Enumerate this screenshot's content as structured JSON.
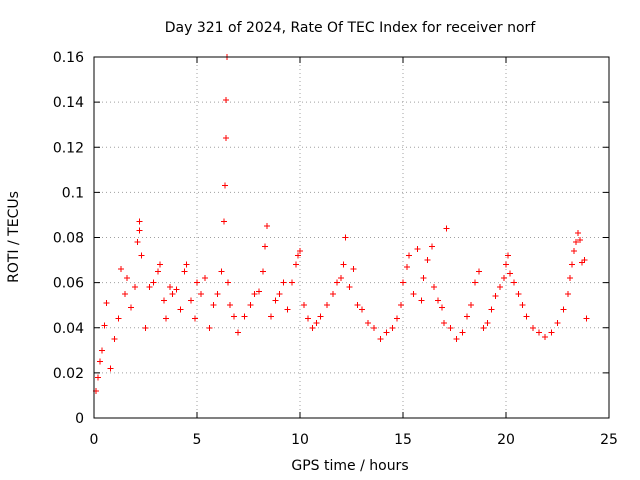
{
  "chart_data": {
    "type": "scatter",
    "title": "Day 321 of 2024, Rate Of TEC Index for receiver norf",
    "xlabel": "GPS time / hours",
    "ylabel": "ROTI / TECUs",
    "xlim": [
      0,
      25
    ],
    "ylim": [
      0,
      0.16
    ],
    "xticks": [
      0,
      5,
      10,
      15,
      20,
      25
    ],
    "xtick_labels": [
      "0",
      "5",
      "10",
      "15",
      "20",
      "25"
    ],
    "yticks": [
      0,
      0.02,
      0.04,
      0.06,
      0.08,
      0.1,
      0.12,
      0.14,
      0.16
    ],
    "ytick_labels": [
      "0",
      "0.02",
      "0.04",
      "0.06",
      "0.08",
      "0.1",
      "0.12",
      "0.14",
      "0.16"
    ],
    "grid": true,
    "marker": "plus",
    "marker_color": "#ff0000",
    "x_range_data": [
      0,
      24
    ],
    "series": [
      {
        "name": "ROTI",
        "color": "#ff0000",
        "points": [
          [
            0.1,
            0.012
          ],
          [
            0.2,
            0.018
          ],
          [
            0.3,
            0.025
          ],
          [
            0.4,
            0.03
          ],
          [
            0.5,
            0.041
          ],
          [
            0.6,
            0.051
          ],
          [
            0.8,
            0.022
          ],
          [
            1.0,
            0.035
          ],
          [
            1.2,
            0.044
          ],
          [
            1.3,
            0.066
          ],
          [
            1.5,
            0.055
          ],
          [
            1.6,
            0.062
          ],
          [
            1.8,
            0.049
          ],
          [
            2.0,
            0.058
          ],
          [
            2.1,
            0.078
          ],
          [
            2.2,
            0.083
          ],
          [
            2.2,
            0.087
          ],
          [
            2.3,
            0.072
          ],
          [
            2.5,
            0.04
          ],
          [
            2.7,
            0.058
          ],
          [
            2.9,
            0.06
          ],
          [
            3.1,
            0.065
          ],
          [
            3.2,
            0.068
          ],
          [
            3.4,
            0.052
          ],
          [
            3.5,
            0.044
          ],
          [
            3.7,
            0.058
          ],
          [
            3.8,
            0.055
          ],
          [
            4.0,
            0.057
          ],
          [
            4.2,
            0.048
          ],
          [
            4.4,
            0.065
          ],
          [
            4.5,
            0.068
          ],
          [
            4.7,
            0.052
          ],
          [
            4.9,
            0.044
          ],
          [
            5.0,
            0.06
          ],
          [
            5.2,
            0.055
          ],
          [
            5.4,
            0.062
          ],
          [
            5.6,
            0.04
          ],
          [
            5.8,
            0.05
          ],
          [
            6.0,
            0.055
          ],
          [
            6.2,
            0.065
          ],
          [
            6.3,
            0.087
          ],
          [
            6.35,
            0.103
          ],
          [
            6.4,
            0.124
          ],
          [
            6.4,
            0.141
          ],
          [
            6.45,
            0.16
          ],
          [
            6.5,
            0.06
          ],
          [
            6.6,
            0.05
          ],
          [
            6.8,
            0.045
          ],
          [
            7.0,
            0.038
          ],
          [
            7.3,
            0.045
          ],
          [
            7.6,
            0.05
          ],
          [
            7.8,
            0.055
          ],
          [
            8.0,
            0.056
          ],
          [
            8.2,
            0.065
          ],
          [
            8.3,
            0.076
          ],
          [
            8.4,
            0.085
          ],
          [
            8.6,
            0.045
          ],
          [
            8.8,
            0.052
          ],
          [
            9.0,
            0.055
          ],
          [
            9.2,
            0.06
          ],
          [
            9.4,
            0.048
          ],
          [
            9.6,
            0.06
          ],
          [
            9.8,
            0.068
          ],
          [
            9.9,
            0.072
          ],
          [
            10.0,
            0.074
          ],
          [
            10.2,
            0.05
          ],
          [
            10.4,
            0.044
          ],
          [
            10.6,
            0.04
          ],
          [
            10.8,
            0.042
          ],
          [
            11.0,
            0.045
          ],
          [
            11.3,
            0.05
          ],
          [
            11.6,
            0.055
          ],
          [
            11.8,
            0.06
          ],
          [
            12.0,
            0.062
          ],
          [
            12.1,
            0.068
          ],
          [
            12.2,
            0.08
          ],
          [
            12.4,
            0.058
          ],
          [
            12.6,
            0.066
          ],
          [
            12.8,
            0.05
          ],
          [
            13.0,
            0.048
          ],
          [
            13.3,
            0.042
          ],
          [
            13.6,
            0.04
          ],
          [
            13.9,
            0.035
          ],
          [
            14.2,
            0.038
          ],
          [
            14.5,
            0.04
          ],
          [
            14.7,
            0.044
          ],
          [
            14.9,
            0.05
          ],
          [
            15.0,
            0.06
          ],
          [
            15.2,
            0.067
          ],
          [
            15.3,
            0.072
          ],
          [
            15.5,
            0.055
          ],
          [
            15.7,
            0.075
          ],
          [
            15.9,
            0.052
          ],
          [
            16.0,
            0.062
          ],
          [
            16.2,
            0.07
          ],
          [
            16.4,
            0.076
          ],
          [
            16.5,
            0.058
          ],
          [
            16.7,
            0.052
          ],
          [
            16.9,
            0.049
          ],
          [
            17.0,
            0.042
          ],
          [
            17.1,
            0.084
          ],
          [
            17.3,
            0.04
          ],
          [
            17.6,
            0.035
          ],
          [
            17.9,
            0.038
          ],
          [
            18.1,
            0.045
          ],
          [
            18.3,
            0.05
          ],
          [
            18.5,
            0.06
          ],
          [
            18.7,
            0.065
          ],
          [
            18.9,
            0.04
          ],
          [
            19.1,
            0.042
          ],
          [
            19.3,
            0.048
          ],
          [
            19.5,
            0.054
          ],
          [
            19.7,
            0.058
          ],
          [
            19.9,
            0.062
          ],
          [
            20.0,
            0.068
          ],
          [
            20.1,
            0.072
          ],
          [
            20.2,
            0.064
          ],
          [
            20.4,
            0.06
          ],
          [
            20.6,
            0.055
          ],
          [
            20.8,
            0.05
          ],
          [
            21.0,
            0.045
          ],
          [
            21.3,
            0.04
          ],
          [
            21.6,
            0.038
          ],
          [
            21.9,
            0.036
          ],
          [
            22.2,
            0.038
          ],
          [
            22.5,
            0.042
          ],
          [
            22.8,
            0.048
          ],
          [
            23.0,
            0.055
          ],
          [
            23.1,
            0.062
          ],
          [
            23.2,
            0.068
          ],
          [
            23.3,
            0.074
          ],
          [
            23.4,
            0.078
          ],
          [
            23.5,
            0.082
          ],
          [
            23.6,
            0.079
          ],
          [
            23.7,
            0.069
          ],
          [
            23.8,
            0.07
          ],
          [
            23.9,
            0.044
          ]
        ]
      }
    ]
  }
}
